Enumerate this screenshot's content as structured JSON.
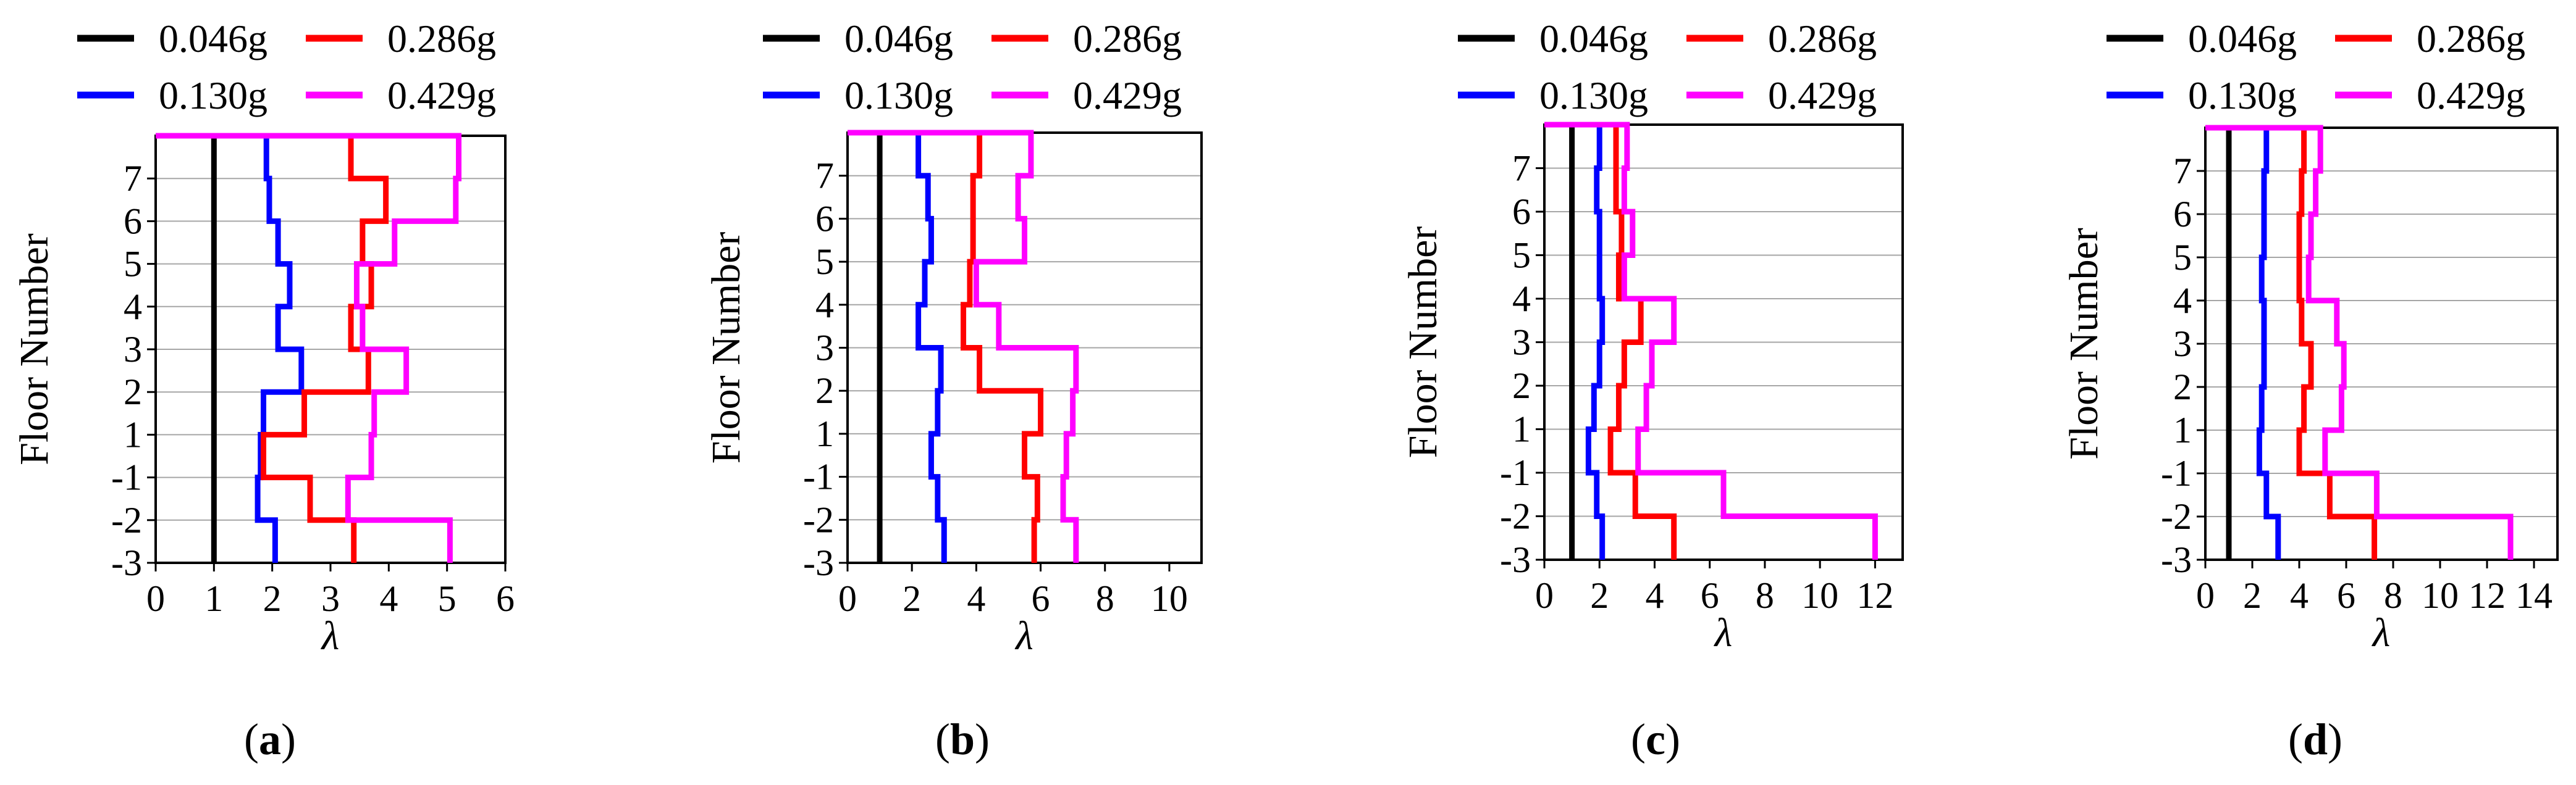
{
  "figure": {
    "legend": [
      {
        "label": "0.046g",
        "color": "#000000"
      },
      {
        "label": "0.286g",
        "color": "#ff0000"
      },
      {
        "label": "0.130g",
        "color": "#0000ff"
      },
      {
        "label": "0.429g",
        "color": "#ff00ff"
      }
    ]
  },
  "chart_data": [
    {
      "type": "line",
      "panel_label": "a",
      "xlabel": "λ",
      "ylabel": "Floor Number",
      "xlim": [
        0,
        6
      ],
      "xticks": [
        "0",
        "1",
        "2",
        "3",
        "4",
        "5",
        "6"
      ],
      "yticks": [
        "-3",
        "-2",
        "-1",
        "1",
        "2",
        "3",
        "4",
        "5",
        "6",
        "7"
      ],
      "series": [
        {
          "name": "0.046g",
          "color": "#000000",
          "values": [
            1,
            1,
            1,
            1,
            1,
            1,
            1,
            1,
            1,
            1
          ]
        },
        {
          "name": "0.130g",
          "color": "#0000ff",
          "values": [
            2.05,
            1.75,
            1.8,
            1.85,
            2.5,
            2.1,
            2.3,
            2.1,
            1.95,
            1.9
          ]
        },
        {
          "name": "0.286g",
          "color": "#ff0000",
          "values": [
            3.4,
            2.65,
            1.85,
            2.55,
            3.65,
            3.35,
            3.7,
            3.55,
            3.95,
            3.35
          ]
        },
        {
          "name": "0.429g",
          "color": "#ff00ff",
          "values": [
            5.05,
            3.3,
            3.7,
            3.75,
            4.3,
            3.55,
            3.45,
            4.1,
            5.15,
            5.2
          ]
        }
      ]
    },
    {
      "type": "line",
      "panel_label": "b",
      "xlabel": "λ",
      "ylabel": "Floor Number",
      "xlim": [
        0,
        11
      ],
      "xticks": [
        "0",
        "2",
        "4",
        "6",
        "8",
        "10"
      ],
      "yticks": [
        "-3",
        "-2",
        "-1",
        "1",
        "2",
        "3",
        "4",
        "5",
        "6",
        "7"
      ],
      "series": [
        {
          "name": "0.046g",
          "color": "#000000",
          "values": [
            1,
            1,
            1,
            1,
            1,
            1,
            1,
            1,
            1,
            1
          ]
        },
        {
          "name": "0.130g",
          "color": "#0000ff",
          "values": [
            3.0,
            2.8,
            2.6,
            2.8,
            2.9,
            2.2,
            2.4,
            2.6,
            2.5,
            2.2
          ]
        },
        {
          "name": "0.286g",
          "color": "#ff0000",
          "values": [
            5.8,
            5.9,
            5.5,
            6.0,
            4.1,
            3.6,
            3.8,
            3.9,
            3.9,
            4.1
          ]
        },
        {
          "name": "0.429g",
          "color": "#ff00ff",
          "values": [
            7.1,
            6.7,
            6.8,
            7.0,
            7.1,
            4.7,
            4.0,
            5.5,
            5.3,
            5.7
          ]
        }
      ]
    },
    {
      "type": "line",
      "panel_label": "c",
      "xlabel": "λ",
      "ylabel": "Floor Number",
      "xlim": [
        0,
        13
      ],
      "xticks": [
        "0",
        "2",
        "4",
        "6",
        "8",
        "10",
        "12"
      ],
      "yticks": [
        "-3",
        "-2",
        "-1",
        "1",
        "2",
        "3",
        "4",
        "5",
        "6",
        "7"
      ],
      "series": [
        {
          "name": "0.046g",
          "color": "#000000",
          "values": [
            1,
            1,
            1,
            1,
            1,
            1,
            1,
            1,
            1,
            1
          ]
        },
        {
          "name": "0.130g",
          "color": "#0000ff",
          "values": [
            2.1,
            1.9,
            1.6,
            1.8,
            2.0,
            2.1,
            2.0,
            2.0,
            1.9,
            2.0
          ]
        },
        {
          "name": "0.286g",
          "color": "#ff0000",
          "values": [
            4.7,
            3.3,
            2.4,
            2.7,
            2.9,
            3.5,
            2.7,
            2.8,
            2.6,
            2.6
          ]
        },
        {
          "name": "0.429g",
          "color": "#ff00ff",
          "values": [
            12.0,
            6.5,
            3.4,
            3.7,
            3.9,
            4.7,
            2.9,
            3.2,
            2.9,
            3.0
          ]
        }
      ]
    },
    {
      "type": "line",
      "panel_label": "d",
      "xlabel": "λ",
      "ylabel": "Floor Number",
      "xlim": [
        0,
        15
      ],
      "xticks": [
        "0",
        "2",
        "4",
        "6",
        "8",
        "10",
        "12",
        "14"
      ],
      "yticks": [
        "-3",
        "-2",
        "-1",
        "1",
        "2",
        "3",
        "4",
        "5",
        "6",
        "7"
      ],
      "series": [
        {
          "name": "0.046g",
          "color": "#000000",
          "values": [
            1,
            1,
            1,
            1,
            1,
            1,
            1,
            1,
            1,
            1
          ]
        },
        {
          "name": "0.130g",
          "color": "#0000ff",
          "values": [
            3.1,
            2.6,
            2.3,
            2.4,
            2.5,
            2.5,
            2.4,
            2.5,
            2.5,
            2.6
          ]
        },
        {
          "name": "0.286g",
          "color": "#ff0000",
          "values": [
            7.2,
            5.3,
            4.0,
            4.2,
            4.5,
            4.1,
            4.0,
            4.0,
            4.1,
            4.2
          ]
        },
        {
          "name": "0.429g",
          "color": "#ff00ff",
          "values": [
            13.0,
            7.3,
            5.1,
            5.8,
            5.9,
            5.6,
            4.4,
            4.5,
            4.7,
            4.9
          ]
        }
      ]
    }
  ]
}
